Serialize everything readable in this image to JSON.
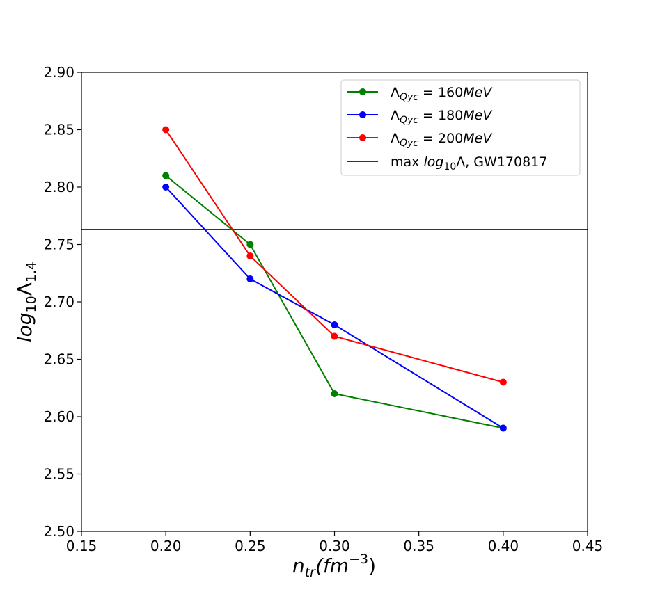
{
  "chart_data": {
    "type": "line",
    "xlabel": {
      "base": "n",
      "sub": "tr",
      "rest": "(fm",
      "sup": "−3",
      "close": ")"
    },
    "ylabel": {
      "base": "log",
      "sub": "10",
      "mid": "Λ",
      "sub2": "1.4"
    },
    "xlim": [
      0.15,
      0.45
    ],
    "ylim": [
      2.5,
      2.9
    ],
    "x_ticks": [
      "0.15",
      "0.20",
      "0.25",
      "0.30",
      "0.35",
      "0.40",
      "0.45"
    ],
    "y_ticks": [
      "2.50",
      "2.55",
      "2.60",
      "2.65",
      "2.70",
      "2.75",
      "2.80",
      "2.85",
      "2.90"
    ],
    "grid": false,
    "legend_position": "top-right",
    "series": [
      {
        "name": {
          "pre": "Λ",
          "sub": "Qyc",
          "eq": " = 160",
          "unit": "MeV"
        },
        "color": "#008000",
        "x": [
          0.2,
          0.25,
          0.3,
          0.4
        ],
        "y": [
          2.81,
          2.75,
          2.62,
          2.59
        ]
      },
      {
        "name": {
          "pre": "Λ",
          "sub": "Qyc",
          "eq": " = 180",
          "unit": "MeV"
        },
        "color": "#0000ff",
        "x": [
          0.2,
          0.25,
          0.3,
          0.4
        ],
        "y": [
          2.8,
          2.72,
          2.68,
          2.59
        ]
      },
      {
        "name": {
          "pre": "Λ",
          "sub": "Qyc",
          "eq": " = 200",
          "unit": "MeV"
        },
        "color": "#ff0000",
        "x": [
          0.2,
          0.25,
          0.3,
          0.4
        ],
        "y": [
          2.85,
          2.74,
          2.67,
          2.63
        ]
      }
    ],
    "hline": {
      "y": 2.763,
      "color": "#800080",
      "label": {
        "pre": "max ",
        "italic": "log",
        "sub": "10",
        "post": "Λ, GW170817"
      }
    }
  }
}
